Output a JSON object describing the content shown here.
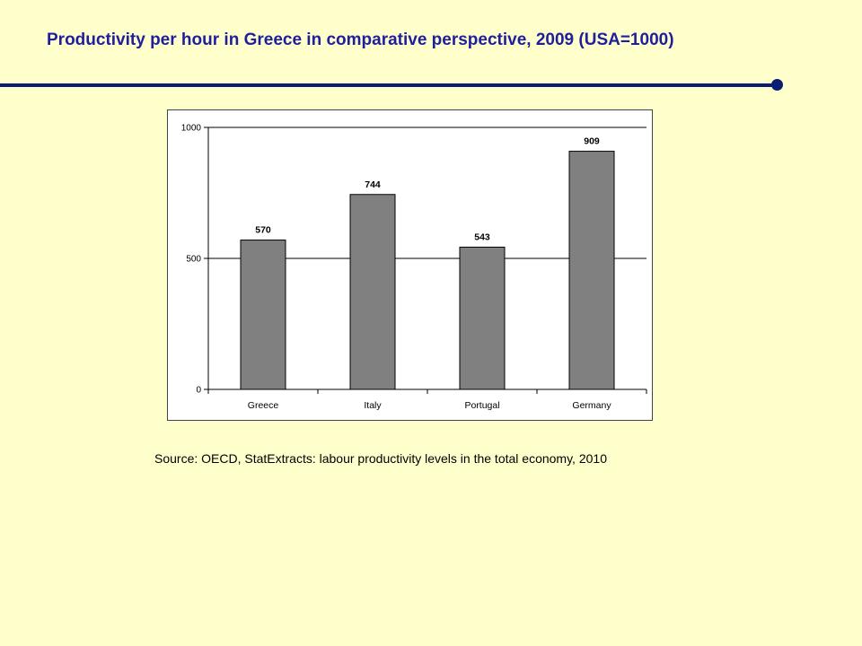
{
  "slide": {
    "title": "Productivity per hour in Greece in comparative perspective, 2009 (USA=1000)",
    "source": "Source: OECD, StatExtracts: labour productivity levels in the total economy, 2010"
  },
  "colors": {
    "background": "#ffffcc",
    "title": "#1f1f9c",
    "rule": "#0b1c73",
    "bar": "#808080"
  },
  "chart_data": {
    "type": "bar",
    "title": "",
    "xlabel": "",
    "ylabel": "",
    "categories": [
      "Greece",
      "Italy",
      "Portugal",
      "Germany"
    ],
    "values": [
      570,
      744,
      543,
      909
    ],
    "data_labels": [
      "570",
      "744",
      "543",
      "909"
    ],
    "ylim": [
      0,
      1000
    ],
    "yticks": [
      0,
      500,
      1000
    ],
    "ytick_labels": [
      "0",
      "500",
      "1000"
    ],
    "grid": "horizontal at 500",
    "legend": "none"
  }
}
